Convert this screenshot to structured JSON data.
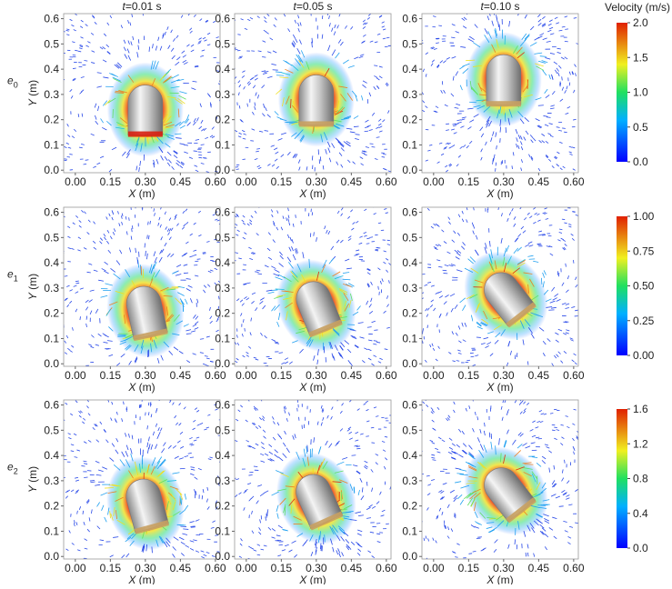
{
  "columns": [
    {
      "var": "t",
      "text": "=0.01 s"
    },
    {
      "var": "t",
      "text": "=0.05 s"
    },
    {
      "var": "t",
      "text": "=0.10 s"
    }
  ],
  "x_label": {
    "var": "X",
    "unit": " (m)"
  },
  "y_label": {
    "var": "Y",
    "unit": " (m)"
  },
  "xlim": [
    -0.05,
    0.62
  ],
  "ylim": [
    -0.01,
    0.62
  ],
  "xticks": [
    {
      "value": 0,
      "label": "0.00"
    },
    {
      "value": 0.15,
      "label": "0.15"
    },
    {
      "value": 0.3,
      "label": "0.30"
    },
    {
      "value": 0.45,
      "label": "0.45"
    },
    {
      "value": 0.6,
      "label": "0.60"
    }
  ],
  "yticks": [
    {
      "value": 0,
      "label": "0.0"
    },
    {
      "value": 0.1,
      "label": "0.1"
    },
    {
      "value": 0.2,
      "label": "0.2"
    },
    {
      "value": 0.3,
      "label": "0.3"
    },
    {
      "value": 0.4,
      "label": "0.4"
    },
    {
      "value": 0.5,
      "label": "0.5"
    },
    {
      "value": 0.6,
      "label": "0.6"
    }
  ],
  "colorbar_title": "Velocity (m/s)",
  "rows": [
    {
      "label": "e",
      "sub": "0",
      "colorbar": {
        "lim": [
          0,
          2
        ],
        "ticks": [
          {
            "value": 0,
            "label": "0.0"
          },
          {
            "value": 0.5,
            "label": "0.5"
          },
          {
            "value": 1,
            "label": "1.0"
          },
          {
            "value": 1.5,
            "label": "1.5"
          },
          {
            "value": 2,
            "label": "2.0"
          }
        ]
      }
    },
    {
      "label": "e",
      "sub": "1",
      "colorbar": {
        "lim": [
          0,
          1
        ],
        "ticks": [
          {
            "value": 0,
            "label": "0.00"
          },
          {
            "value": 0.25,
            "label": "0.25"
          },
          {
            "value": 0.5,
            "label": "0.50"
          },
          {
            "value": 0.75,
            "label": "0.75"
          },
          {
            "value": 1,
            "label": "1.00"
          }
        ]
      }
    },
    {
      "label": "e",
      "sub": "2",
      "colorbar": {
        "lim": [
          0,
          1.6
        ],
        "ticks": [
          {
            "value": 0,
            "label": "0.0"
          },
          {
            "value": 0.4,
            "label": "0.4"
          },
          {
            "value": 0.8,
            "label": "0.8"
          },
          {
            "value": 1.2,
            "label": "1.2"
          },
          {
            "value": 1.6,
            "label": "1.6"
          }
        ]
      }
    }
  ]
}
